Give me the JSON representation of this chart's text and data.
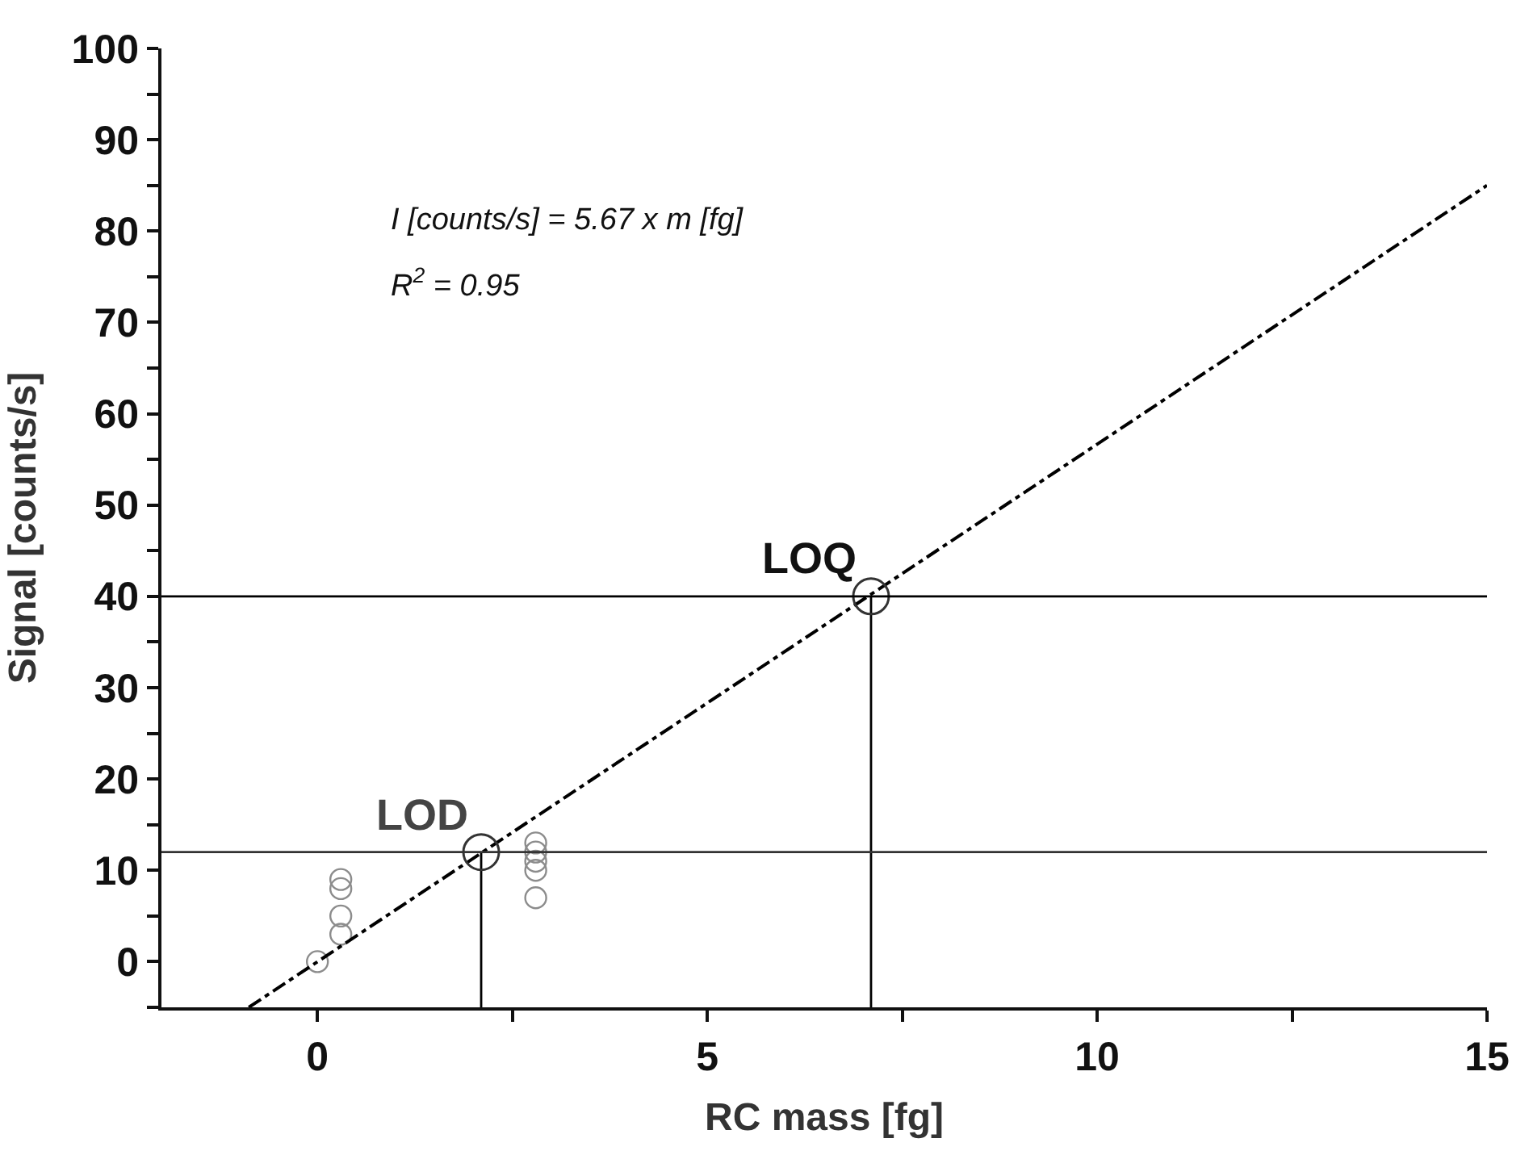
{
  "chart_data": {
    "type": "scatter",
    "xlabel": "RC mass [fg]",
    "ylabel": "Signal [counts/s]",
    "xlim": [
      -2,
      15
    ],
    "ylim": [
      -5,
      100
    ],
    "xticks": [
      0,
      {
        "value": 2.5,
        "label": null
      },
      5,
      {
        "value": 7.5,
        "label": null
      },
      10,
      {
        "value": 12.5,
        "label": null
      },
      15
    ],
    "yticks": [
      {
        "value": -5,
        "label": null
      },
      0,
      {
        "value": 5,
        "label": null
      },
      10,
      {
        "value": 15,
        "label": null
      },
      20,
      {
        "value": 25,
        "label": null
      },
      30,
      {
        "value": 35,
        "label": null
      },
      40,
      {
        "value": 45,
        "label": null
      },
      50,
      {
        "value": 55,
        "label": null
      },
      60,
      {
        "value": 65,
        "label": null
      },
      70,
      {
        "value": 75,
        "label": null
      },
      80,
      {
        "value": 85,
        "label": null
      },
      90,
      {
        "value": 95,
        "label": null
      },
      100
    ],
    "legend": false,
    "marker": "circle",
    "series": [
      {
        "color": "#8c8c8c",
        "x": [
          0,
          0.3,
          0.3,
          0.3,
          0.3,
          2.8,
          2.8,
          2.8,
          2.8,
          2.8
        ],
        "values": [
          0,
          3,
          5,
          8,
          9,
          7,
          10,
          11,
          12,
          13
        ]
      },
      {
        "type": "line",
        "color": "#000000",
        "line_style": "dashdot",
        "marker": "none",
        "x": [
          -0.88,
          15
        ],
        "values": [
          -5,
          85
        ]
      },
      {
        "type": "line",
        "color": "#000000",
        "line_style": "solid",
        "marker": "none",
        "x": [
          2.1,
          2.1
        ],
        "values": [
          -5,
          12
        ]
      },
      {
        "type": "line",
        "color": "#000000",
        "line_style": "solid",
        "marker": "none",
        "x": [
          7.1,
          7.1
        ],
        "values": [
          -5,
          40
        ]
      },
      {
        "color": "#333333",
        "x": [
          2.1,
          7.1
        ],
        "values": [
          12,
          40
        ]
      }
    ],
    "ref_lines": [
      {
        "axis": "y",
        "value": 12,
        "color": "#333333"
      },
      {
        "axis": "y",
        "value": 40,
        "color": "#000000"
      }
    ],
    "annotations": [
      "I [counts/s] = 5.67 x m [fg]",
      "R$^{2}$ = 0.95",
      {
        "text": "LOD",
        "x": 2.1,
        "y": 12
      },
      {
        "text": "LOQ",
        "x": 7.1,
        "y": 40
      }
    ]
  }
}
